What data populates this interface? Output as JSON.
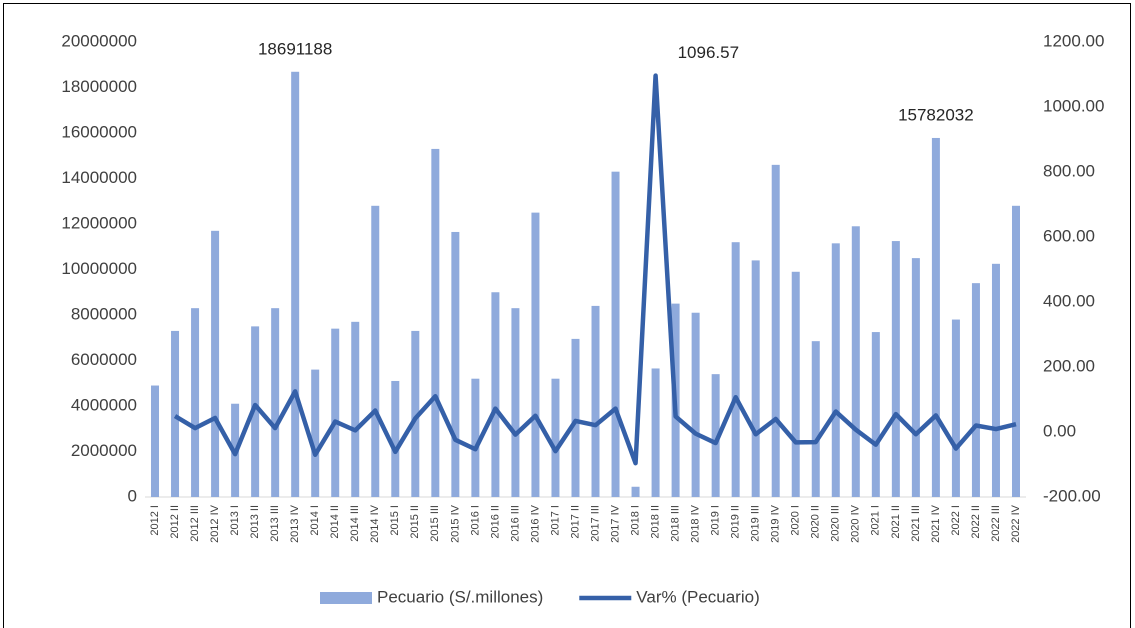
{
  "chart_data": {
    "type": "bar-line",
    "categories": [
      "2012 I",
      "2012 II",
      "2012 III",
      "2012 IV",
      "2013 I",
      "2013 II",
      "2013 III",
      "2013 IV",
      "2014 I",
      "2014 II",
      "2014 III",
      "2014 IV",
      "2015 I",
      "2015 II",
      "2015 III",
      "2015 IV",
      "2016 I",
      "2016 II",
      "2016 III",
      "2016 IV",
      "2017 I",
      "2017 II",
      "2017 III",
      "2017 IV",
      "2018 I",
      "2018 II",
      "2018 III",
      "2018 IV",
      "2019 I",
      "2019 II",
      "2019 III",
      "2019 IV",
      "2020 I",
      "2020 II",
      "2020 III",
      "2020 IV",
      "2021 I",
      "2021 II",
      "2021 III",
      "2021 IV",
      "2022 I",
      "2022 II",
      "2022 III",
      "2022 IV"
    ],
    "series": [
      {
        "name": "Pecuario (S/.millones)",
        "type": "bar",
        "color": "#8faadc",
        "values": [
          4900000,
          7300000,
          8300000,
          11700000,
          4100000,
          7500000,
          8300000,
          18691188,
          5600000,
          7400000,
          7700000,
          12800000,
          5100000,
          7300000,
          15300000,
          11650000,
          5200000,
          9000000,
          8300000,
          12500000,
          5200000,
          6950000,
          8400000,
          14300000,
          450000,
          5650000,
          8500000,
          8100000,
          5400000,
          11200000,
          10400000,
          14600000,
          9900000,
          6850000,
          11150000,
          11900000,
          7250000,
          11250000,
          10500000,
          15782032,
          7800000,
          9400000,
          10250000,
          12800000
        ]
      },
      {
        "name": "Var% (Pecuario)",
        "type": "line",
        "axis": "y2",
        "color": "#3560a8",
        "values": [
          null,
          49,
          12,
          43,
          -68,
          83,
          12,
          125,
          -70,
          32,
          5,
          66,
          -61,
          42,
          110,
          -24,
          -53,
          72,
          -8,
          50,
          -59,
          34,
          21,
          72,
          -96,
          1096.57,
          48,
          -5,
          -34,
          107,
          -7,
          40,
          -32,
          -31,
          63,
          7,
          -39,
          55,
          -7,
          51,
          -51,
          20,
          9,
          24
        ]
      }
    ],
    "ylim": [
      0,
      20000000
    ],
    "yticks": [
      0,
      2000000,
      4000000,
      6000000,
      8000000,
      10000000,
      12000000,
      14000000,
      16000000,
      18000000,
      20000000
    ],
    "y2lim": [
      -200,
      1200
    ],
    "y2ticks": [
      {
        "value": -200,
        "label": "-200.00"
      },
      {
        "value": 0,
        "label": "0.00"
      },
      {
        "value": 200,
        "label": "200.00"
      },
      {
        "value": 400,
        "label": "400.00"
      },
      {
        "value": 600,
        "label": "600.00"
      },
      {
        "value": 800,
        "label": "800.00"
      },
      {
        "value": 1000,
        "label": "1000.00"
      },
      {
        "value": 1200,
        "label": "1200.00"
      }
    ],
    "legend": "bottom"
  }
}
